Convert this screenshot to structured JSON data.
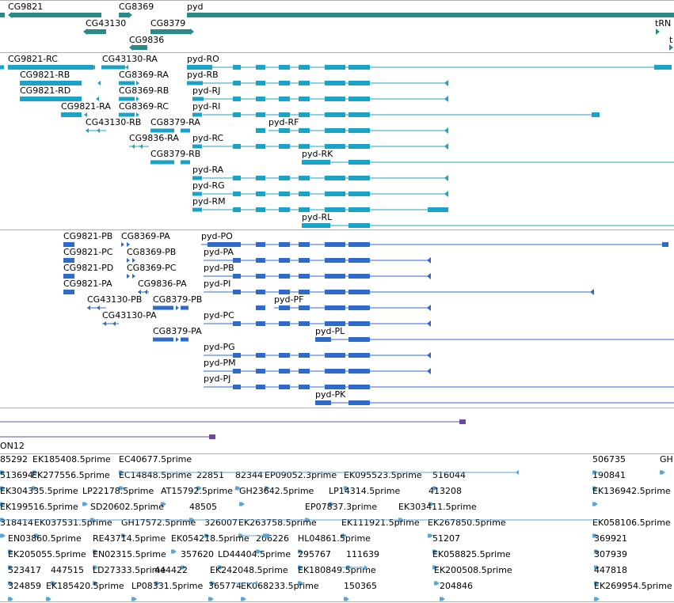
{
  "colors": {
    "gene": "#2a8a8a",
    "rna": "#1ba3c7",
    "protein": "#2e6bc9",
    "feature": "#6a4c9c",
    "est": "#5aa6d6",
    "separator": "#b0b0b0"
  },
  "genes": [
    {
      "label": "CG9821",
      "strand": "-"
    },
    {
      "label": "CG8369",
      "strand": "+"
    },
    {
      "label": "pyd",
      "strand": "+"
    },
    {
      "label": "CG43130",
      "strand": "-"
    },
    {
      "label": "CG8379",
      "strand": "+"
    },
    {
      "label": "tRN",
      "strand": "+"
    },
    {
      "label": "CG9836",
      "strand": "-"
    },
    {
      "label": "t",
      "strand": "+"
    }
  ],
  "transcripts": [
    "CG9821-RC",
    "CG43130-RA",
    "pyd-RO",
    "CG9821-RB",
    "CG8369-RA",
    "pyd-RB",
    "CG9821-RD",
    "CG8369-RB",
    "pyd-RJ",
    "CG9821-RA",
    "CG8369-RC",
    "pyd-RI",
    "CG43130-RB",
    "CG8379-RA",
    "pyd-RF",
    "CG9836-RA",
    "pyd-RC",
    "CG8379-RB",
    "pyd-RK",
    "pyd-RA",
    "pyd-RG",
    "pyd-RM",
    "pyd-RL"
  ],
  "proteins": [
    "CG9821-PB",
    "CG8369-PA",
    "pyd-PO",
    "CG9821-PC",
    "CG8369-PB",
    "pyd-PA",
    "CG9821-PD",
    "CG8369-PC",
    "pyd-PB",
    "CG9821-PA",
    "CG9836-PA",
    "pyd-PI",
    "CG43130-PB",
    "CG8379-PB",
    "pyd-PF",
    "CG43130-PA",
    "pyd-PC",
    "CG8379-PA",
    "pyd-PL",
    "pyd-PG",
    "pyd-PM",
    "pyd-PJ",
    "pyd-PK"
  ],
  "features": [
    "ON12"
  ],
  "ests": [
    "85292",
    "EK185408.5prime",
    "EC40677.5prime",
    "506735",
    "GH",
    "513694",
    "EK277556.5prime",
    "EC14848.5prime",
    "22851",
    "82344",
    "EP09052.3prime",
    "EK095523.5prime",
    "516044",
    "190841",
    "EK304335.5prime",
    "LP22178.5prime",
    "AT15792.5prime",
    "GH23642.5prime",
    "LP14314.5prime",
    "413208",
    "EK136942.5prime",
    "EK199516.5prime",
    "SD20602.5prime",
    "48505",
    "EP07837.3prime",
    "EK303411.5prime",
    "318414",
    "EK037531.5prime",
    "GH17572.5prime",
    "326007",
    "EK263758.5prime",
    "EK111921.5prime",
    "EK267850.5prime",
    "EK058106.5prime",
    "EN03860.5prime",
    "RE43714.5prime",
    "EK054218.5prime",
    "206226",
    "HL04861.5prime",
    "51207",
    "369921",
    "EK205055.5prime",
    "EN02315.5prime",
    "357620",
    "LD44404.5prime",
    "295767",
    "111639",
    "EK058825.5prime",
    "307939",
    "523417",
    "447515",
    "LD27333.5prime",
    "444422",
    "EK242048.5prime",
    "EK180849.5prime",
    "EK200508.5prime",
    "447818",
    "324859",
    "EK185420.5prime",
    "LP08331.5prime",
    "365774",
    "EK068233.5prime",
    "150365",
    "204846",
    "EK269954.5prime"
  ]
}
